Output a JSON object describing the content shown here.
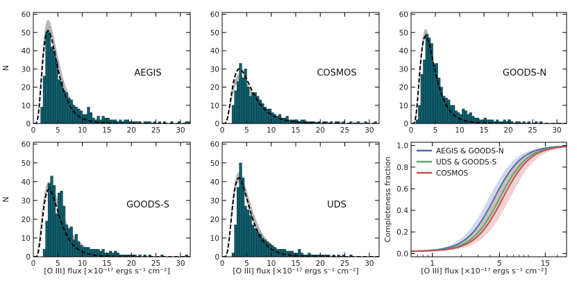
{
  "figure": {
    "x_axis_label": "[O III] flux [×10⁻¹⁷ ergs s⁻¹ cm⁻²]"
  },
  "chart_data": [
    {
      "id": "aegis",
      "type": "bar",
      "title": "AEGIS",
      "ylabel": "N",
      "xlim": [
        0,
        32
      ],
      "ylim": [
        0,
        61
      ],
      "xticks": [
        0,
        5,
        10,
        15,
        20,
        25,
        30
      ],
      "yticks": [
        0,
        10,
        20,
        30,
        40,
        50,
        60
      ],
      "bin_width": 0.5,
      "bin_start": 0,
      "counts": [
        0,
        0,
        0,
        9,
        26,
        50,
        50,
        42,
        40,
        34,
        24,
        23,
        18,
        17,
        14,
        13,
        10,
        9,
        8,
        7,
        5,
        5,
        9,
        6,
        3,
        2,
        4,
        2,
        4,
        3,
        3,
        2,
        2,
        2,
        1,
        2,
        1,
        2,
        2,
        1,
        1,
        1,
        1,
        1,
        0,
        1,
        1,
        1,
        0,
        1,
        0,
        1,
        0,
        1,
        0,
        0,
        1,
        0,
        0,
        1,
        0,
        0,
        1,
        1
      ],
      "model_peak_x": 3.0,
      "model_peak_y": 51,
      "model_width": 0.5,
      "band_peak_y": 57,
      "band_width": 0.55,
      "band_low": 0.88
    },
    {
      "id": "cosmos",
      "type": "bar",
      "title": "COSMOS",
      "ylabel": "",
      "xlim": [
        0,
        32
      ],
      "ylim": [
        0,
        61
      ],
      "xticks": [
        0,
        5,
        10,
        15,
        20,
        25,
        30
      ],
      "yticks": [
        0,
        10,
        20,
        30,
        40,
        50,
        60
      ],
      "bin_width": 0.5,
      "bin_start": 0,
      "counts": [
        0,
        0,
        0,
        0,
        10,
        18,
        23,
        33,
        25,
        30,
        20,
        15,
        17,
        17,
        15,
        13,
        11,
        9,
        8,
        8,
        6,
        5,
        4,
        5,
        3,
        3,
        4,
        2,
        2,
        2,
        2,
        1,
        2,
        2,
        1,
        1,
        1,
        1,
        0,
        1,
        0,
        1,
        1,
        0,
        1,
        0,
        1,
        1,
        0,
        1,
        0,
        0,
        1,
        0,
        0,
        1,
        0,
        0,
        1,
        0,
        0,
        0,
        1,
        0
      ],
      "model_peak_x": 3.5,
      "model_peak_y": 30,
      "model_width": 0.55,
      "band_peak_y": 27,
      "band_width": 0.6,
      "band_low": 0.85
    },
    {
      "id": "goodsn",
      "type": "bar",
      "title": "GOODS-N",
      "ylabel": "",
      "xlim": [
        0,
        32
      ],
      "ylim": [
        0,
        61
      ],
      "xticks": [
        0,
        5,
        10,
        15,
        20,
        25,
        30
      ],
      "yticks": [
        0,
        10,
        20,
        30,
        40,
        50,
        60
      ],
      "bin_width": 0.5,
      "bin_start": 0,
      "counts": [
        0,
        0,
        2,
        10,
        27,
        35,
        49,
        47,
        44,
        32,
        33,
        25,
        20,
        15,
        14,
        13,
        10,
        10,
        7,
        6,
        5,
        8,
        7,
        5,
        6,
        4,
        3,
        3,
        2,
        2,
        3,
        2,
        2,
        2,
        1,
        2,
        1,
        1,
        2,
        1,
        2,
        1,
        0,
        1,
        1,
        0,
        1,
        0,
        1,
        0,
        0,
        1,
        0,
        1,
        0,
        0,
        0,
        0,
        0,
        0,
        0,
        0,
        0,
        0
      ],
      "model_peak_x": 3.0,
      "model_peak_y": 48,
      "model_width": 0.5,
      "band_peak_y": 52,
      "band_width": 0.5,
      "band_low": 0.9
    },
    {
      "id": "goodss",
      "type": "bar",
      "title": "GOODS-S",
      "ylabel": "N",
      "xlim": [
        0,
        32
      ],
      "ylim": [
        0,
        61
      ],
      "xticks": [
        0,
        5,
        10,
        15,
        20,
        25,
        30
      ],
      "yticks": [
        0,
        10,
        20,
        30,
        40,
        50,
        60
      ],
      "bin_width": 0.5,
      "bin_start": 0,
      "counts": [
        0,
        0,
        0,
        0,
        4,
        19,
        39,
        43,
        38,
        23,
        34,
        35,
        27,
        17,
        15,
        16,
        9,
        12,
        8,
        6,
        5,
        5,
        5,
        4,
        4,
        4,
        4,
        3,
        4,
        2,
        2,
        3,
        2,
        3,
        2,
        1,
        1,
        1,
        1,
        1,
        1,
        1,
        0,
        1,
        0,
        1,
        0,
        1,
        0,
        0,
        0,
        0,
        1,
        0,
        0,
        0,
        0,
        0,
        0,
        0,
        0,
        0,
        1,
        0
      ],
      "model_peak_x": 3.2,
      "model_peak_y": 36,
      "model_width": 0.5,
      "band_peak_y": 40,
      "band_width": 0.6,
      "band_low": 0.88
    },
    {
      "id": "uds",
      "type": "bar",
      "title": "UDS",
      "ylabel": "",
      "xlim": [
        0,
        32
      ],
      "ylim": [
        0,
        61
      ],
      "xticks": [
        0,
        5,
        10,
        15,
        20,
        25,
        30
      ],
      "yticks": [
        0,
        10,
        20,
        30,
        40,
        50,
        60
      ],
      "bin_width": 0.5,
      "bin_start": 0,
      "counts": [
        0,
        0,
        0,
        0,
        2,
        17,
        37,
        50,
        42,
        27,
        25,
        22,
        17,
        15,
        13,
        12,
        10,
        9,
        8,
        7,
        6,
        5,
        4,
        4,
        4,
        4,
        3,
        3,
        3,
        2,
        2,
        4,
        2,
        1,
        1,
        2,
        1,
        1,
        1,
        1,
        1,
        1,
        1,
        1,
        0,
        1,
        0,
        1,
        0,
        1,
        0,
        0,
        1,
        0,
        0,
        0,
        0,
        0,
        0,
        0,
        0,
        0,
        0,
        0
      ],
      "model_peak_x": 3.4,
      "model_peak_y": 42,
      "model_width": 0.5,
      "band_peak_y": 45,
      "band_width": 0.55,
      "band_low": 0.88
    },
    {
      "id": "completeness",
      "type": "line",
      "title": "",
      "ylabel": "Completeness fraction",
      "xscale": "log",
      "xlim": [
        0.6,
        25
      ],
      "ylim": [
        -0.03,
        1.03
      ],
      "xticks": [
        1,
        5,
        15
      ],
      "yticks": [
        0.0,
        0.2,
        0.4,
        0.6,
        0.8,
        1.0
      ],
      "legend_position": "top-left",
      "series": [
        {
          "name": "AEGIS & GOODS-N",
          "color": "#4c6fb0",
          "band_color": "#a9b8dc",
          "f50": 4.4,
          "slope": 3.0,
          "floor": 0.02,
          "band": 0.55
        },
        {
          "name": "UDS & GOODS-S",
          "color": "#5aa467",
          "band_color": "#a9cfb0",
          "f50": 5.0,
          "slope": 3.0,
          "floor": 0.02,
          "band": 0.45
        },
        {
          "name": "COSMOS",
          "color": "#c4504e",
          "band_color": "#e1abaa",
          "f50": 5.4,
          "slope": 3.0,
          "floor": 0.02,
          "band": 1.0
        }
      ]
    }
  ]
}
